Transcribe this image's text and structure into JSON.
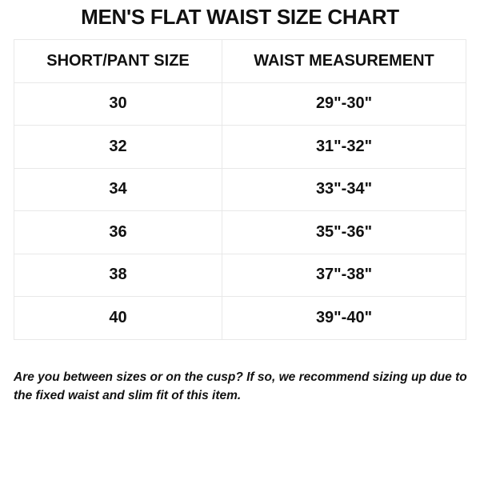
{
  "title": "MEN'S FLAT WAIST SIZE CHART",
  "table": {
    "headers": [
      "SHORT/PANT SIZE",
      "WAIST MEASUREMENT"
    ],
    "rows": [
      [
        "30",
        "29\"-30\""
      ],
      [
        "32",
        "31\"-32\""
      ],
      [
        "34",
        "33\"-34\""
      ],
      [
        "36",
        "35\"-36\""
      ],
      [
        "38",
        "37\"-38\""
      ],
      [
        "40",
        "39\"-40\""
      ]
    ]
  },
  "note": "Are you between sizes or on the cusp? If so, we recommend sizing up due to the fixed waist and slim fit of this item."
}
